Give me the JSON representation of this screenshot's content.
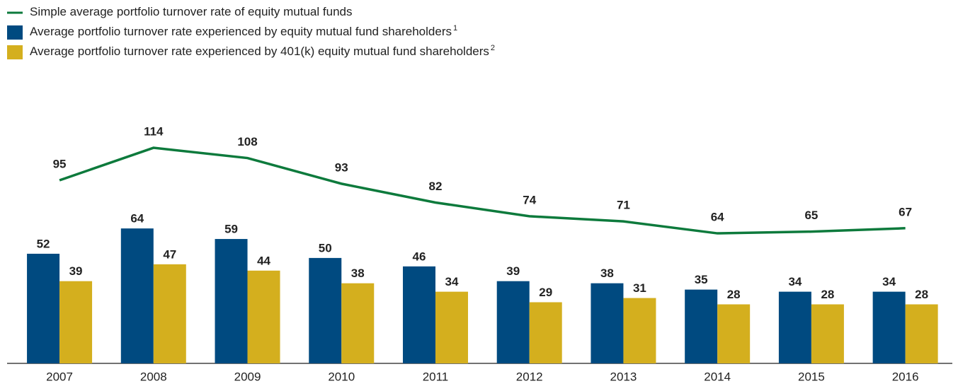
{
  "chart_data": {
    "type": "bar",
    "categories": [
      "2007",
      "2008",
      "2009",
      "2010",
      "2011",
      "2012",
      "2013",
      "2014",
      "2015",
      "2016"
    ],
    "series": [
      {
        "name": "Simple average portfolio turnover rate of equity mutual funds",
        "type": "line",
        "axis": "y2",
        "color": "#0d7a3c",
        "values": [
          95,
          114,
          108,
          93,
          82,
          74,
          71,
          64,
          65,
          67
        ]
      },
      {
        "name": "Average portfolio turnover rate experienced by equity mutual fund shareholders",
        "footnote": "1",
        "color": "#004a80",
        "values": [
          52,
          64,
          59,
          50,
          46,
          39,
          38,
          35,
          34,
          34
        ]
      },
      {
        "name": "Average portfolio turnover rate experienced by 401(k) equity mutual fund shareholders",
        "footnote": "2",
        "color": "#d4af1e",
        "values": [
          39,
          47,
          44,
          38,
          34,
          29,
          31,
          28,
          28,
          28
        ]
      }
    ],
    "ylim": [
      0,
      112
    ],
    "y2lim": [
      -12,
      126
    ]
  }
}
